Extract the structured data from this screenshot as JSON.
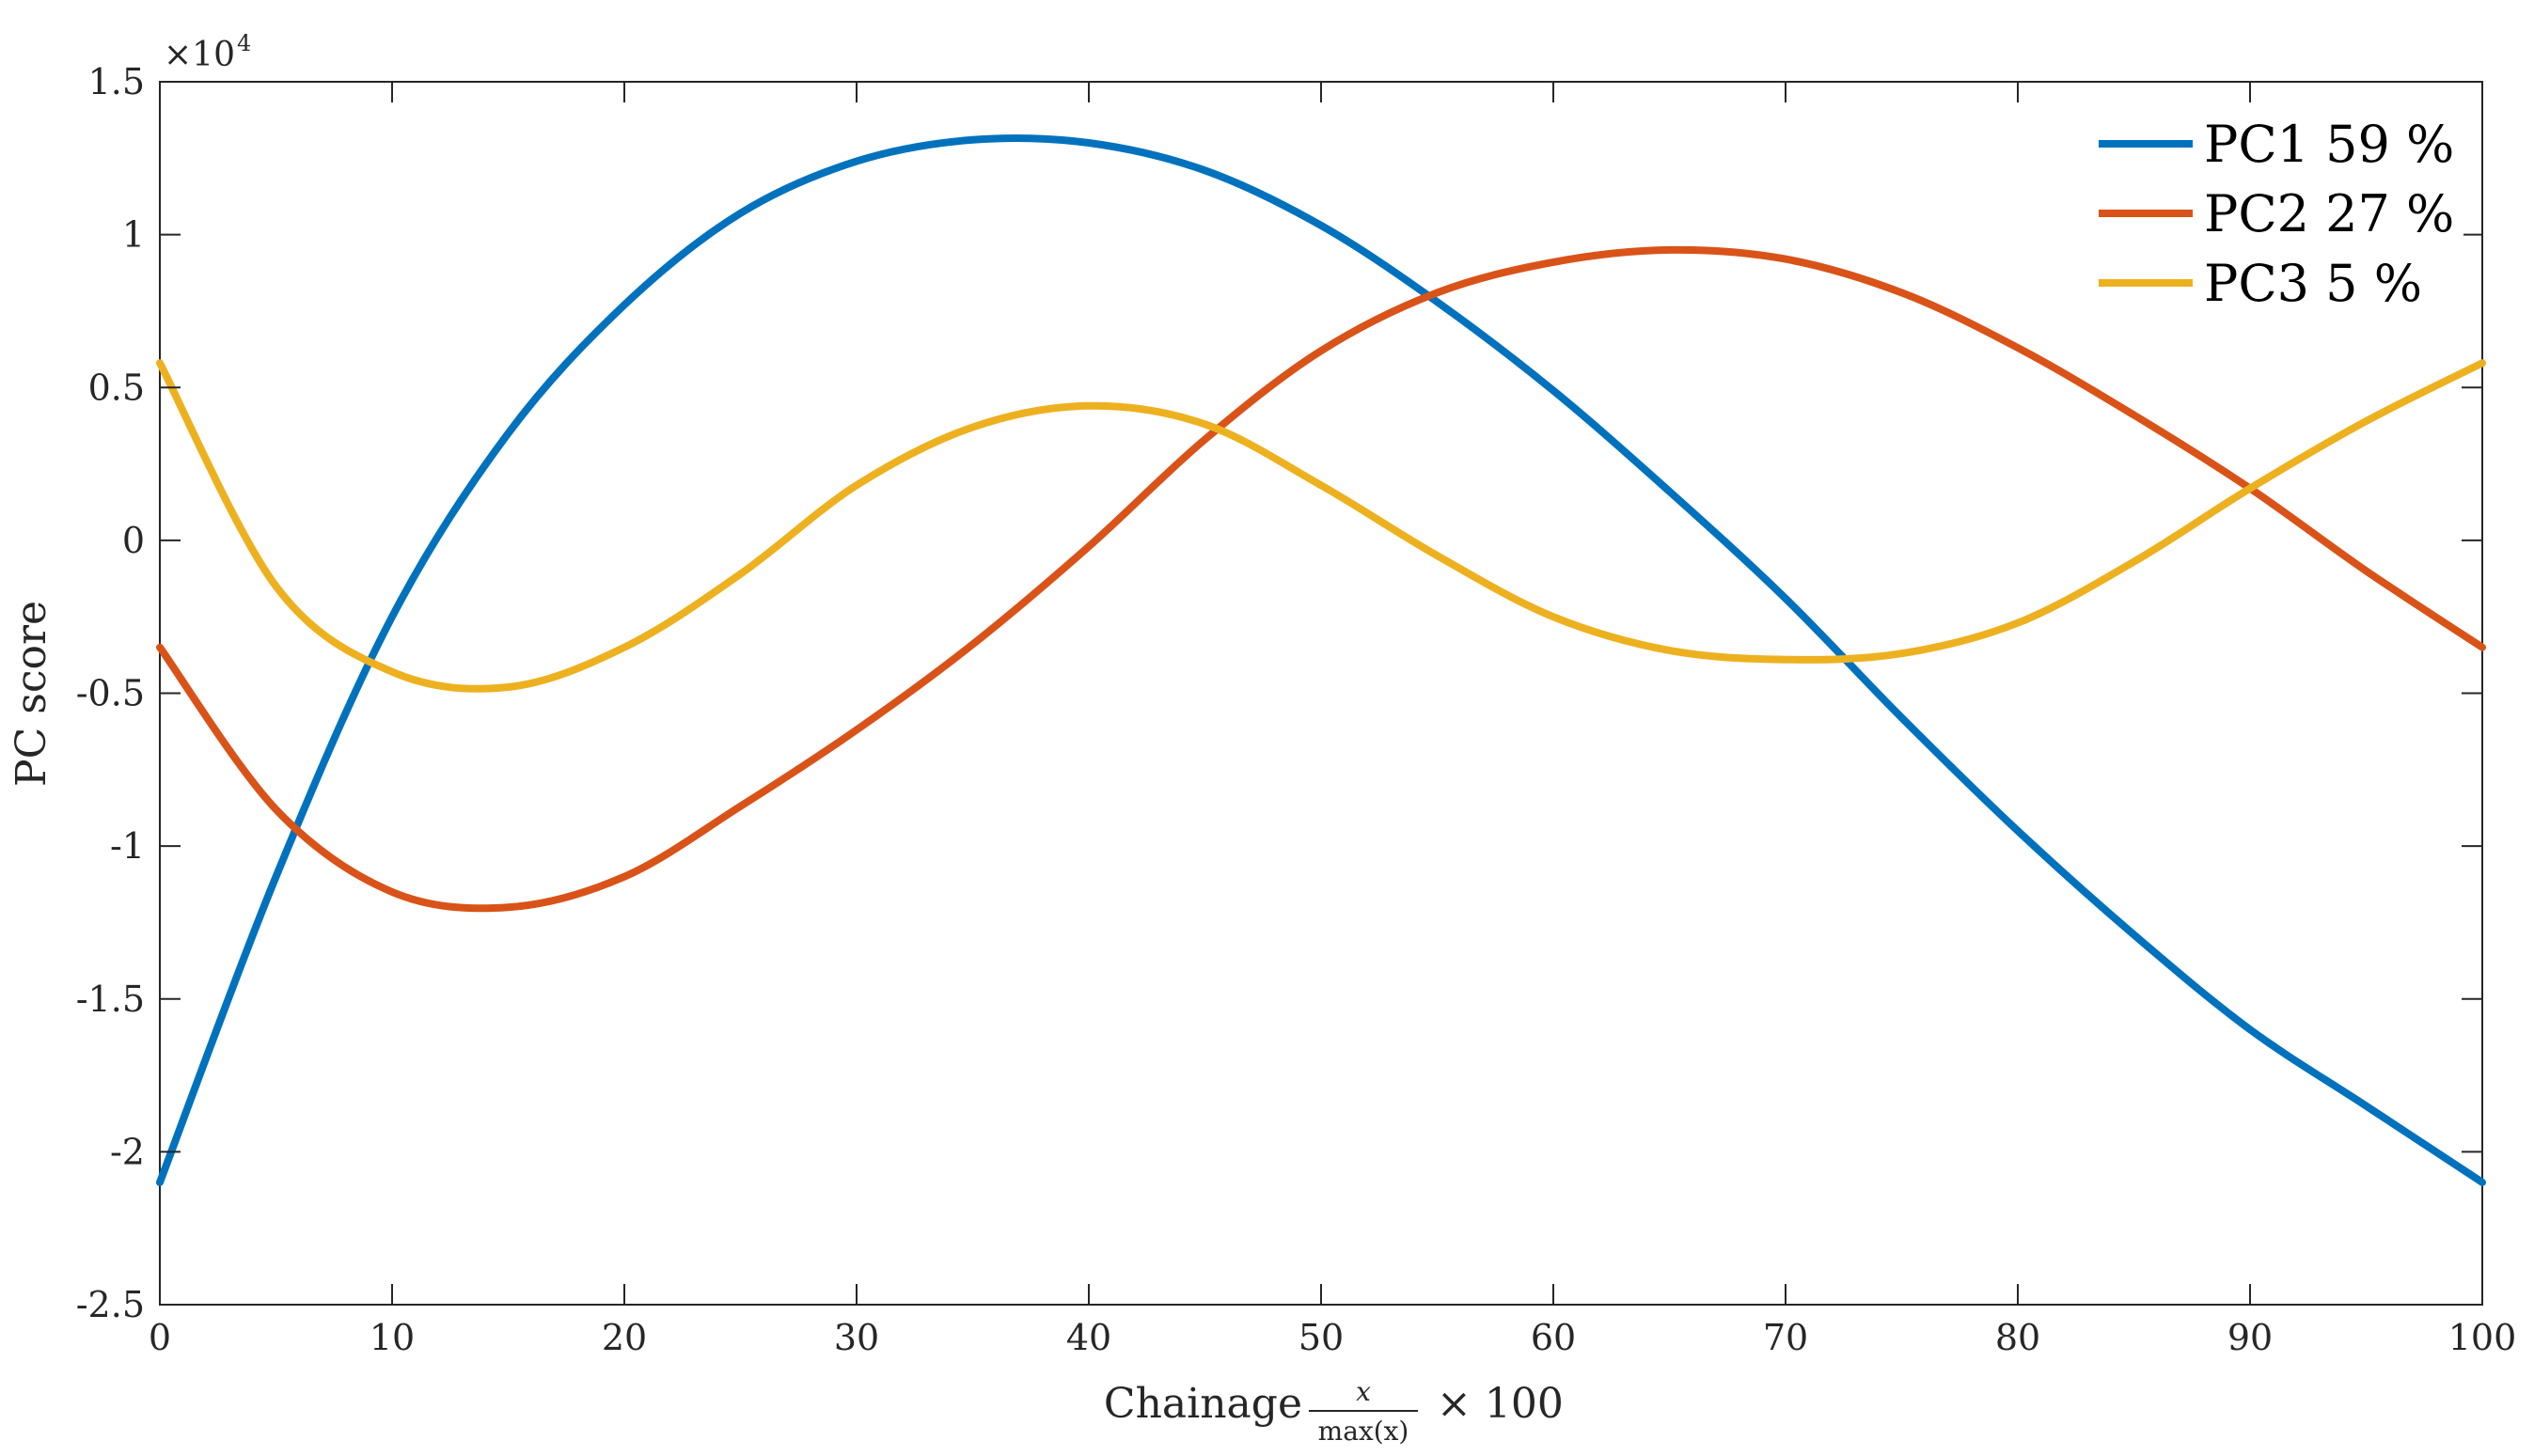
{
  "chart_data": {
    "type": "line",
    "title": "",
    "xlabel": {
      "prefix": "Chainage",
      "frac_numerator": "x",
      "frac_denominator": "max(x)",
      "suffix": "× 100"
    },
    "ylabel": "PC score",
    "y_exponent": {
      "base": "×10",
      "power": "4"
    },
    "xlim": [
      0,
      100
    ],
    "ylim": [
      -25000,
      15000
    ],
    "xticks": [
      0,
      10,
      20,
      30,
      40,
      50,
      60,
      70,
      80,
      90,
      100
    ],
    "xtick_labels": [
      "0",
      "10",
      "20",
      "30",
      "40",
      "50",
      "60",
      "70",
      "80",
      "90",
      "100"
    ],
    "yticks": [
      -25000,
      -20000,
      -15000,
      -10000,
      -5000,
      0,
      5000,
      10000,
      15000
    ],
    "ytick_labels": [
      "-2.5",
      "-2",
      "-1.5",
      "-1",
      "-0.5",
      "0",
      "0.5",
      "1",
      "1.5"
    ],
    "grid": false,
    "legend_position": "top-right",
    "x": [
      0,
      5,
      10,
      15,
      20,
      25,
      30,
      35,
      40,
      45,
      50,
      55,
      60,
      65,
      70,
      75,
      80,
      85,
      90,
      95,
      100
    ],
    "series": [
      {
        "name": "PC1 59 %",
        "color": "#0072BD",
        "values": [
          -21000,
          -11000,
          -2500,
          3500,
          7700,
          10700,
          12400,
          13100,
          13000,
          12100,
          10300,
          7800,
          4900,
          1600,
          -1900,
          -5800,
          -9500,
          -12900,
          -16000,
          -18500,
          -21000
        ]
      },
      {
        "name": "PC2 27 %",
        "color": "#D95319",
        "values": [
          -3500,
          -8800,
          -11500,
          -12000,
          -11000,
          -8700,
          -6200,
          -3400,
          -200,
          3300,
          6200,
          8100,
          9100,
          9500,
          9200,
          8100,
          6300,
          4100,
          1700,
          -1000,
          -3500
        ]
      },
      {
        "name": "PC3 5 %",
        "color": "#EDB120",
        "values": [
          5800,
          -1500,
          -4300,
          -4800,
          -3500,
          -1100,
          1800,
          3700,
          4400,
          3800,
          1800,
          -500,
          -2500,
          -3600,
          -3900,
          -3700,
          -2700,
          -700,
          1700,
          3900,
          5800
        ]
      }
    ]
  }
}
